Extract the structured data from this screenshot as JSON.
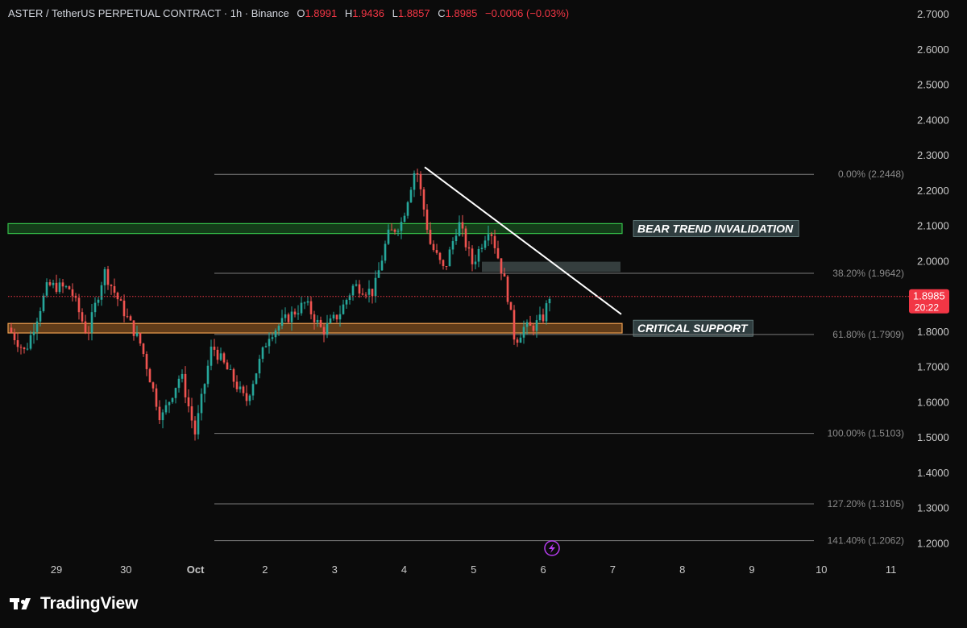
{
  "header": {
    "symbol": "ASTER / TetherUS PERPETUAL CONTRACT · 1h · Binance",
    "o_label": "O",
    "o_value": "1.8991",
    "h_label": "H",
    "h_value": "1.9436",
    "l_label": "L",
    "l_value": "1.8857",
    "c_label": "C",
    "c_value": "1.8985",
    "change": "−0.0006 (−0.03%)"
  },
  "price_label": {
    "price": "1.8985",
    "countdown": "20:22"
  },
  "brand": {
    "name": "TradingView"
  },
  "colors": {
    "bg": "#0b0b0b",
    "up": "#26a69a",
    "down": "#ef5350",
    "green_zone": "#1e7a2a",
    "orange_zone": "#c9772a",
    "price_tag": "#f23645",
    "fib_line": "#7a7a7a",
    "trend_line": "#ffffff"
  },
  "chart_data": {
    "type": "candlestick",
    "title": "ASTER / TetherUS PERPETUAL CONTRACT · 1h · Binance",
    "x_ticks": [
      "29",
      "30",
      "Oct",
      "2",
      "3",
      "4",
      "5",
      "6",
      "7",
      "8",
      "9",
      "10",
      "11"
    ],
    "y_ticks": [
      "2.7000",
      "2.6000",
      "2.5000",
      "2.4000",
      "2.3000",
      "2.2000",
      "2.1000",
      "2.0000",
      "1.9000",
      "1.8000",
      "1.7000",
      "1.6000",
      "1.5000",
      "1.4000",
      "1.3000",
      "1.2000"
    ],
    "ylim": [
      1.17,
      2.72
    ],
    "last_price": 1.8985,
    "fib_levels": [
      {
        "label": "0.00% (2.2448)",
        "value": 2.2448
      },
      {
        "label": "38.20% (1.9642)",
        "value": 1.9642
      },
      {
        "label": "61.80% (1.7909)",
        "value": 1.7909
      },
      {
        "label": "100.00% (1.5103)",
        "value": 1.5103
      },
      {
        "label": "127.20% (1.3105)",
        "value": 1.3105
      },
      {
        "label": "141.40% (1.2062)",
        "value": 1.2062
      }
    ],
    "zones": [
      {
        "label": "BEAR TREND INVALIDATION",
        "low": 2.077,
        "high": 2.105,
        "color": "#1e7a2a"
      },
      {
        "label": "CRITICAL SUPPORT",
        "low": 1.795,
        "high": 1.822,
        "color": "#c9772a"
      },
      {
        "label": "",
        "low": 1.968,
        "high": 1.997,
        "color": "#5a6a6a"
      }
    ],
    "trend_line": {
      "from": {
        "day": 4.34,
        "price": 2.265
      },
      "to": {
        "day": 7.18,
        "price": 1.848
      }
    },
    "key_points": [
      {
        "day": 0.0,
        "price": 1.81
      },
      {
        "day": 0.3,
        "price": 1.74
      },
      {
        "day": 0.7,
        "price": 1.93
      },
      {
        "day": 1.1,
        "price": 1.92
      },
      {
        "day": 1.4,
        "price": 1.79
      },
      {
        "day": 1.7,
        "price": 1.97
      },
      {
        "day": 2.0,
        "price": 1.87
      },
      {
        "day": 2.35,
        "price": 1.76
      },
      {
        "day": 2.7,
        "price": 1.55
      },
      {
        "day": 3.05,
        "price": 1.68
      },
      {
        "day": 3.3,
        "price": 1.51
      },
      {
        "day": 3.6,
        "price": 1.76
      },
      {
        "day": 3.95,
        "price": 1.67
      },
      {
        "day": 4.2,
        "price": 1.6
      },
      {
        "day": 4.6,
        "price": 1.79
      },
      {
        "day": 4.95,
        "price": 1.84
      },
      {
        "day": 5.25,
        "price": 1.88
      },
      {
        "day": 5.55,
        "price": 1.8
      },
      {
        "day": 5.85,
        "price": 1.85
      },
      {
        "day": 6.1,
        "price": 1.93
      },
      {
        "day": 6.45,
        "price": 1.91
      },
      {
        "day": 6.7,
        "price": 2.07
      },
      {
        "day": 6.95,
        "price": 2.11
      },
      {
        "day": 7.2,
        "price": 2.27
      },
      {
        "day": 7.45,
        "price": 2.05
      },
      {
        "day": 7.7,
        "price": 1.97
      },
      {
        "day": 7.95,
        "price": 2.11
      },
      {
        "day": 8.2,
        "price": 1.99
      },
      {
        "day": 8.5,
        "price": 2.1
      },
      {
        "day": 8.8,
        "price": 1.92
      },
      {
        "day": 8.95,
        "price": 1.77
      },
      {
        "day": 9.1,
        "price": 1.81
      },
      {
        "day": 9.25,
        "price": 1.81
      },
      {
        "day": 9.45,
        "price": 1.84
      },
      {
        "day": 9.56,
        "price": 1.9
      }
    ]
  }
}
